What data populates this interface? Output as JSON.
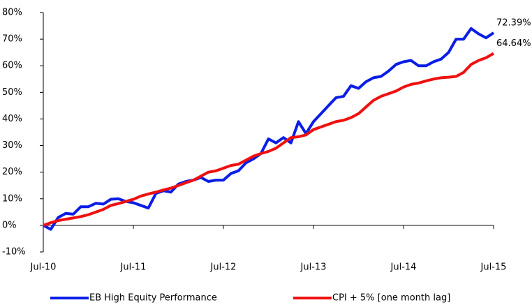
{
  "chart_data": {
    "type": "line",
    "categories": [
      "Jul-10",
      null,
      null,
      null,
      null,
      null,
      null,
      null,
      null,
      null,
      null,
      null,
      "Jul-11",
      null,
      null,
      null,
      null,
      null,
      null,
      null,
      null,
      null,
      null,
      null,
      "Jul-12",
      null,
      null,
      null,
      null,
      null,
      null,
      null,
      null,
      null,
      null,
      null,
      "Jul-13",
      null,
      null,
      null,
      null,
      null,
      null,
      null,
      null,
      null,
      null,
      null,
      "Jul-14",
      null,
      null,
      null,
      null,
      null,
      null,
      null,
      null,
      null,
      null,
      null,
      "Jul-15"
    ],
    "series": [
      {
        "name": "EB High Equity Performance",
        "color": "#0a1ee6",
        "values": [
          0,
          -1.5,
          3,
          4.5,
          4.2,
          7,
          7,
          8.3,
          8,
          9.8,
          10,
          9,
          8.5,
          7.5,
          6.5,
          12,
          13,
          12.5,
          15.5,
          16.5,
          17,
          18,
          16.5,
          17,
          17,
          19.5,
          20.5,
          23.5,
          25,
          27,
          32.5,
          31,
          33,
          31,
          39,
          34.5,
          39,
          42,
          45,
          48,
          48.5,
          52.5,
          51.5,
          54,
          55.5,
          56,
          58,
          60.5,
          61.5,
          62,
          60,
          60,
          61.5,
          62.5,
          65,
          70,
          70,
          74,
          72,
          70.5,
          72.39
        ],
        "value_labels": [
          null,
          null,
          null,
          null,
          null,
          null,
          null,
          null,
          null,
          null,
          null,
          null,
          null,
          null,
          null,
          null,
          null,
          null,
          null,
          null,
          null,
          null,
          null,
          null,
          null,
          null,
          null,
          null,
          null,
          null,
          null,
          null,
          null,
          null,
          null,
          null,
          null,
          null,
          null,
          null,
          null,
          null,
          null,
          null,
          null,
          null,
          null,
          null,
          null,
          null,
          null,
          null,
          null,
          null,
          null,
          null,
          null,
          null,
          null,
          null,
          "72.39%"
        ]
      },
      {
        "name": "CPI + 5% [one month lag]",
        "color": "#f01010",
        "values": [
          0,
          1,
          1.8,
          2.3,
          2.8,
          3.3,
          4,
          5,
          6,
          7.5,
          8.2,
          9,
          9.8,
          11,
          11.8,
          12.5,
          13.3,
          14,
          15,
          16,
          17,
          18.5,
          20,
          20.5,
          21.5,
          22.5,
          23,
          24.5,
          26,
          27,
          27.8,
          29,
          31,
          33,
          33.3,
          34,
          36,
          37,
          38,
          39,
          39.5,
          40.5,
          42,
          44.5,
          47,
          48.5,
          49.5,
          50.5,
          52,
          53,
          53.5,
          54.3,
          55,
          55.5,
          55.7,
          56,
          57.5,
          60.5,
          62,
          63,
          64.64
        ],
        "value_labels": [
          null,
          null,
          null,
          null,
          null,
          null,
          null,
          null,
          null,
          null,
          null,
          null,
          null,
          null,
          null,
          null,
          null,
          null,
          null,
          null,
          null,
          null,
          null,
          null,
          null,
          null,
          null,
          null,
          null,
          null,
          null,
          null,
          null,
          null,
          null,
          null,
          null,
          null,
          null,
          null,
          null,
          null,
          null,
          null,
          null,
          null,
          null,
          null,
          null,
          null,
          null,
          null,
          null,
          null,
          null,
          null,
          null,
          null,
          null,
          null,
          "64.64%"
        ]
      }
    ],
    "ylim": [
      -10,
      80
    ],
    "yticks": [
      {
        "value": -10,
        "label": "-10%"
      },
      {
        "value": 0,
        "label": "0%"
      },
      {
        "value": 10,
        "label": "10%"
      },
      {
        "value": 20,
        "label": "20%"
      },
      {
        "value": 30,
        "label": "30%"
      },
      {
        "value": 40,
        "label": "40%"
      },
      {
        "value": 50,
        "label": "50%"
      },
      {
        "value": 60,
        "label": "60%"
      },
      {
        "value": 70,
        "label": "70%"
      },
      {
        "value": 80,
        "label": "80%"
      }
    ],
    "grid": false,
    "legend": "bottom"
  }
}
